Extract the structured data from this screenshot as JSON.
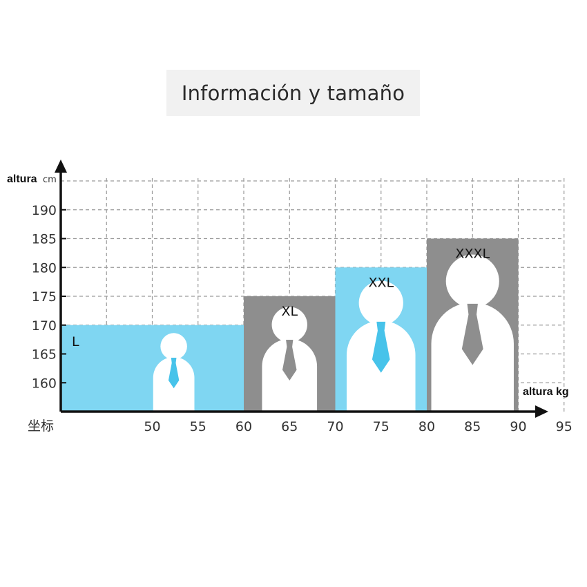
{
  "title": "Información y tamaño",
  "chart_data": {
    "type": "bar",
    "x_axis": {
      "label": "altura kg",
      "origin_label": "坐标",
      "range": [
        40,
        95
      ],
      "ticks": [
        50,
        55,
        60,
        65,
        70,
        75,
        80,
        85,
        90,
        95
      ],
      "grid_step": 5
    },
    "y_axis": {
      "label": "altura",
      "unit": "cm",
      "range": [
        155,
        195
      ],
      "ticks": [
        160,
        165,
        170,
        175,
        180,
        185,
        190
      ],
      "grid_step": 5
    },
    "grid": true,
    "bars": [
      {
        "name": "L",
        "x_start": 40,
        "x_end": 60,
        "height": 170,
        "color": "#7fd6f2",
        "figure_color": "#47c3ea"
      },
      {
        "name": "XL",
        "x_start": 60,
        "x_end": 70,
        "height": 175,
        "color": "#8e8e8e",
        "figure_color": "#8e8e8e"
      },
      {
        "name": "XXL",
        "x_start": 70,
        "x_end": 80,
        "height": 180,
        "color": "#7fd6f2",
        "figure_color": "#47c3ea"
      },
      {
        "name": "XXXL",
        "x_start": 80,
        "x_end": 90,
        "height": 185,
        "color": "#8e8e8e",
        "figure_color": "#8e8e8e"
      }
    ]
  }
}
